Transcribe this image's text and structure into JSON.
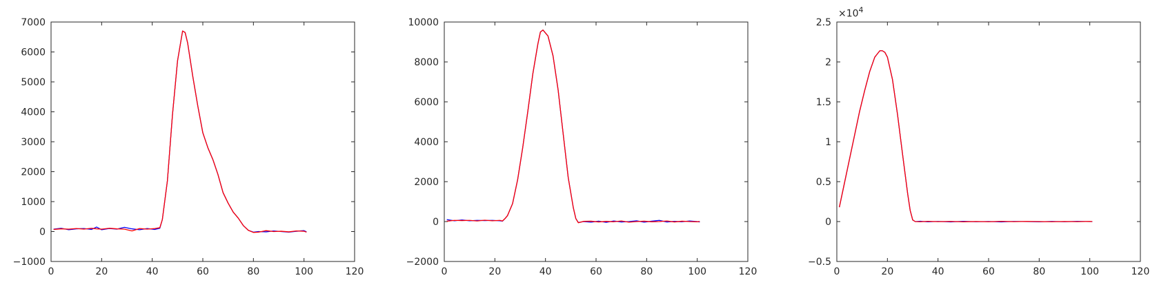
{
  "chart_data": [
    {
      "type": "line",
      "title": "",
      "xlabel": "",
      "ylabel": "",
      "xlim": [
        0,
        120
      ],
      "ylim": [
        -1000,
        7000
      ],
      "xticks": [
        0,
        20,
        40,
        60,
        80,
        100,
        120
      ],
      "xtick_labels": [
        "0",
        "20",
        "40",
        "60",
        "80",
        "100",
        "120"
      ],
      "yticks": [
        -1000,
        0,
        1000,
        2000,
        3000,
        4000,
        5000,
        6000,
        7000
      ],
      "ytick_labels": [
        "−1000",
        "0",
        "1000",
        "2000",
        "3000",
        "4000",
        "5000",
        "6000",
        "7000"
      ],
      "exponent_label": "",
      "grid": false,
      "legend": "none",
      "series": [
        {
          "color": "#0000ff",
          "x": [
            1,
            4,
            7,
            10,
            13,
            16,
            18,
            20,
            23,
            26,
            29,
            32,
            35,
            38,
            41,
            43,
            44,
            46,
            48,
            50,
            52,
            53,
            54,
            56,
            58,
            60,
            62,
            64,
            66,
            68,
            70,
            72,
            74,
            76,
            78,
            80,
            82,
            85,
            88,
            91,
            94,
            97,
            100,
            101
          ],
          "y": [
            80,
            110,
            60,
            90,
            100,
            70,
            150,
            60,
            100,
            80,
            140,
            90,
            60,
            100,
            70,
            110,
            400,
            1700,
            3900,
            5700,
            6700,
            6650,
            6300,
            5200,
            4200,
            3300,
            2800,
            2400,
            1900,
            1300,
            950,
            650,
            450,
            200,
            40,
            -20,
            0,
            -10,
            20,
            0,
            -20,
            10,
            30,
            -10
          ]
        },
        {
          "color": "#ff0000",
          "x": [
            1,
            4,
            7,
            10,
            13,
            16,
            18,
            20,
            23,
            26,
            29,
            32,
            35,
            38,
            41,
            43,
            44,
            46,
            48,
            50,
            52,
            53,
            54,
            56,
            58,
            60,
            62,
            64,
            66,
            68,
            70,
            72,
            74,
            76,
            78,
            80,
            82,
            85,
            88,
            91,
            94,
            97,
            100,
            101
          ],
          "y": [
            70,
            90,
            80,
            100,
            80,
            110,
            90,
            80,
            110,
            90,
            80,
            20,
            100,
            80,
            100,
            130,
            400,
            1700,
            3900,
            5700,
            6700,
            6650,
            6300,
            5200,
            4200,
            3300,
            2800,
            2400,
            1900,
            1300,
            950,
            650,
            450,
            200,
            40,
            -30,
            -20,
            30,
            0,
            10,
            -10,
            20,
            10,
            -20
          ]
        }
      ]
    },
    {
      "type": "line",
      "title": "",
      "xlabel": "",
      "ylabel": "",
      "xlim": [
        0,
        120
      ],
      "ylim": [
        -2000,
        10000
      ],
      "xticks": [
        0,
        20,
        40,
        60,
        80,
        100,
        120
      ],
      "xtick_labels": [
        "0",
        "20",
        "40",
        "60",
        "80",
        "100",
        "120"
      ],
      "yticks": [
        -2000,
        0,
        2000,
        4000,
        6000,
        8000,
        10000
      ],
      "ytick_labels": [
        "−2000",
        "0",
        "2000",
        "4000",
        "6000",
        "8000",
        "10000"
      ],
      "exponent_label": "",
      "grid": false,
      "legend": "none",
      "series": [
        {
          "color": "#0000ff",
          "x": [
            1,
            4,
            7,
            10,
            13,
            16,
            19,
            22,
            23,
            24,
            25,
            27,
            29,
            31,
            33,
            35,
            37,
            38,
            39,
            41,
            43,
            45,
            47,
            49,
            51,
            52,
            53,
            55,
            58,
            61,
            64,
            67,
            70,
            73,
            76,
            79,
            82,
            85,
            88,
            91,
            94,
            97,
            100,
            101
          ],
          "y": [
            100,
            40,
            80,
            40,
            60,
            50,
            60,
            40,
            20,
            150,
            300,
            900,
            2100,
            3700,
            5500,
            7400,
            8900,
            9500,
            9600,
            9300,
            8300,
            6600,
            4400,
            2200,
            700,
            150,
            -50,
            0,
            -30,
            20,
            -40,
            30,
            -20,
            0,
            40,
            -30,
            20,
            60,
            -20,
            10,
            -10,
            30,
            0,
            -20
          ]
        },
        {
          "color": "#ff0000",
          "x": [
            1,
            4,
            7,
            10,
            13,
            16,
            19,
            22,
            23,
            24,
            25,
            27,
            29,
            31,
            33,
            35,
            37,
            38,
            39,
            41,
            43,
            45,
            47,
            49,
            51,
            52,
            53,
            55,
            58,
            61,
            64,
            67,
            70,
            73,
            76,
            79,
            82,
            85,
            88,
            91,
            94,
            97,
            100,
            101
          ],
          "y": [
            20,
            60,
            50,
            60,
            30,
            70,
            40,
            60,
            30,
            150,
            300,
            900,
            2100,
            3700,
            5500,
            7400,
            8900,
            9500,
            9600,
            9300,
            8300,
            6600,
            4400,
            2200,
            700,
            150,
            -60,
            10,
            20,
            -20,
            10,
            -10,
            30,
            -30,
            0,
            20,
            -10,
            0,
            30,
            -20,
            20,
            0,
            -10,
            10
          ]
        }
      ]
    },
    {
      "type": "line",
      "title": "",
      "xlabel": "",
      "ylabel": "",
      "xlim": [
        0,
        120
      ],
      "ylim": [
        -0.5,
        2.5
      ],
      "xticks": [
        0,
        20,
        40,
        60,
        80,
        100,
        120
      ],
      "xtick_labels": [
        "0",
        "20",
        "40",
        "60",
        "80",
        "100",
        "120"
      ],
      "yticks": [
        -0.5,
        0,
        0.5,
        1,
        1.5,
        2,
        2.5
      ],
      "ytick_labels": [
        "−0.5",
        "0",
        "0.5",
        "1",
        "1.5",
        "2",
        "2.5"
      ],
      "exponent_label": "×10",
      "exponent_power": "4",
      "grid": false,
      "legend": "none",
      "series": [
        {
          "color": "#0000ff",
          "x": [
            1,
            3,
            5,
            7,
            9,
            11,
            13,
            15,
            17,
            18,
            19,
            20,
            22,
            24,
            26,
            28,
            29,
            30,
            31,
            33,
            36,
            40,
            45,
            50,
            55,
            60,
            65,
            70,
            75,
            80,
            85,
            90,
            95,
            100,
            101
          ],
          "y": [
            0.18,
            0.48,
            0.78,
            1.08,
            1.38,
            1.64,
            1.88,
            2.06,
            2.14,
            2.14,
            2.12,
            2.06,
            1.78,
            1.34,
            0.84,
            0.35,
            0.14,
            0.02,
            0.0,
            0.004,
            -0.003,
            0.002,
            -0.004,
            0.003,
            -0.002,
            0.001,
            -0.004,
            0.002,
            0.0,
            -0.003,
            0.002,
            -0.002,
            0.003,
            0.0,
            0.0
          ]
        },
        {
          "color": "#ff0000",
          "x": [
            1,
            3,
            5,
            7,
            9,
            11,
            13,
            15,
            17,
            18,
            19,
            20,
            22,
            24,
            26,
            28,
            29,
            30,
            31,
            33,
            36,
            40,
            45,
            50,
            55,
            60,
            65,
            70,
            75,
            80,
            85,
            90,
            95,
            100,
            101
          ],
          "y": [
            0.18,
            0.48,
            0.78,
            1.08,
            1.38,
            1.64,
            1.88,
            2.06,
            2.14,
            2.14,
            2.12,
            2.06,
            1.78,
            1.34,
            0.84,
            0.35,
            0.14,
            0.02,
            0.0,
            -0.002,
            0.003,
            -0.001,
            0.002,
            -0.003,
            0.001,
            -0.002,
            0.003,
            -0.001,
            0.002,
            0.0,
            -0.002,
            0.001,
            -0.001,
            0.002,
            0.0
          ]
        }
      ]
    }
  ]
}
